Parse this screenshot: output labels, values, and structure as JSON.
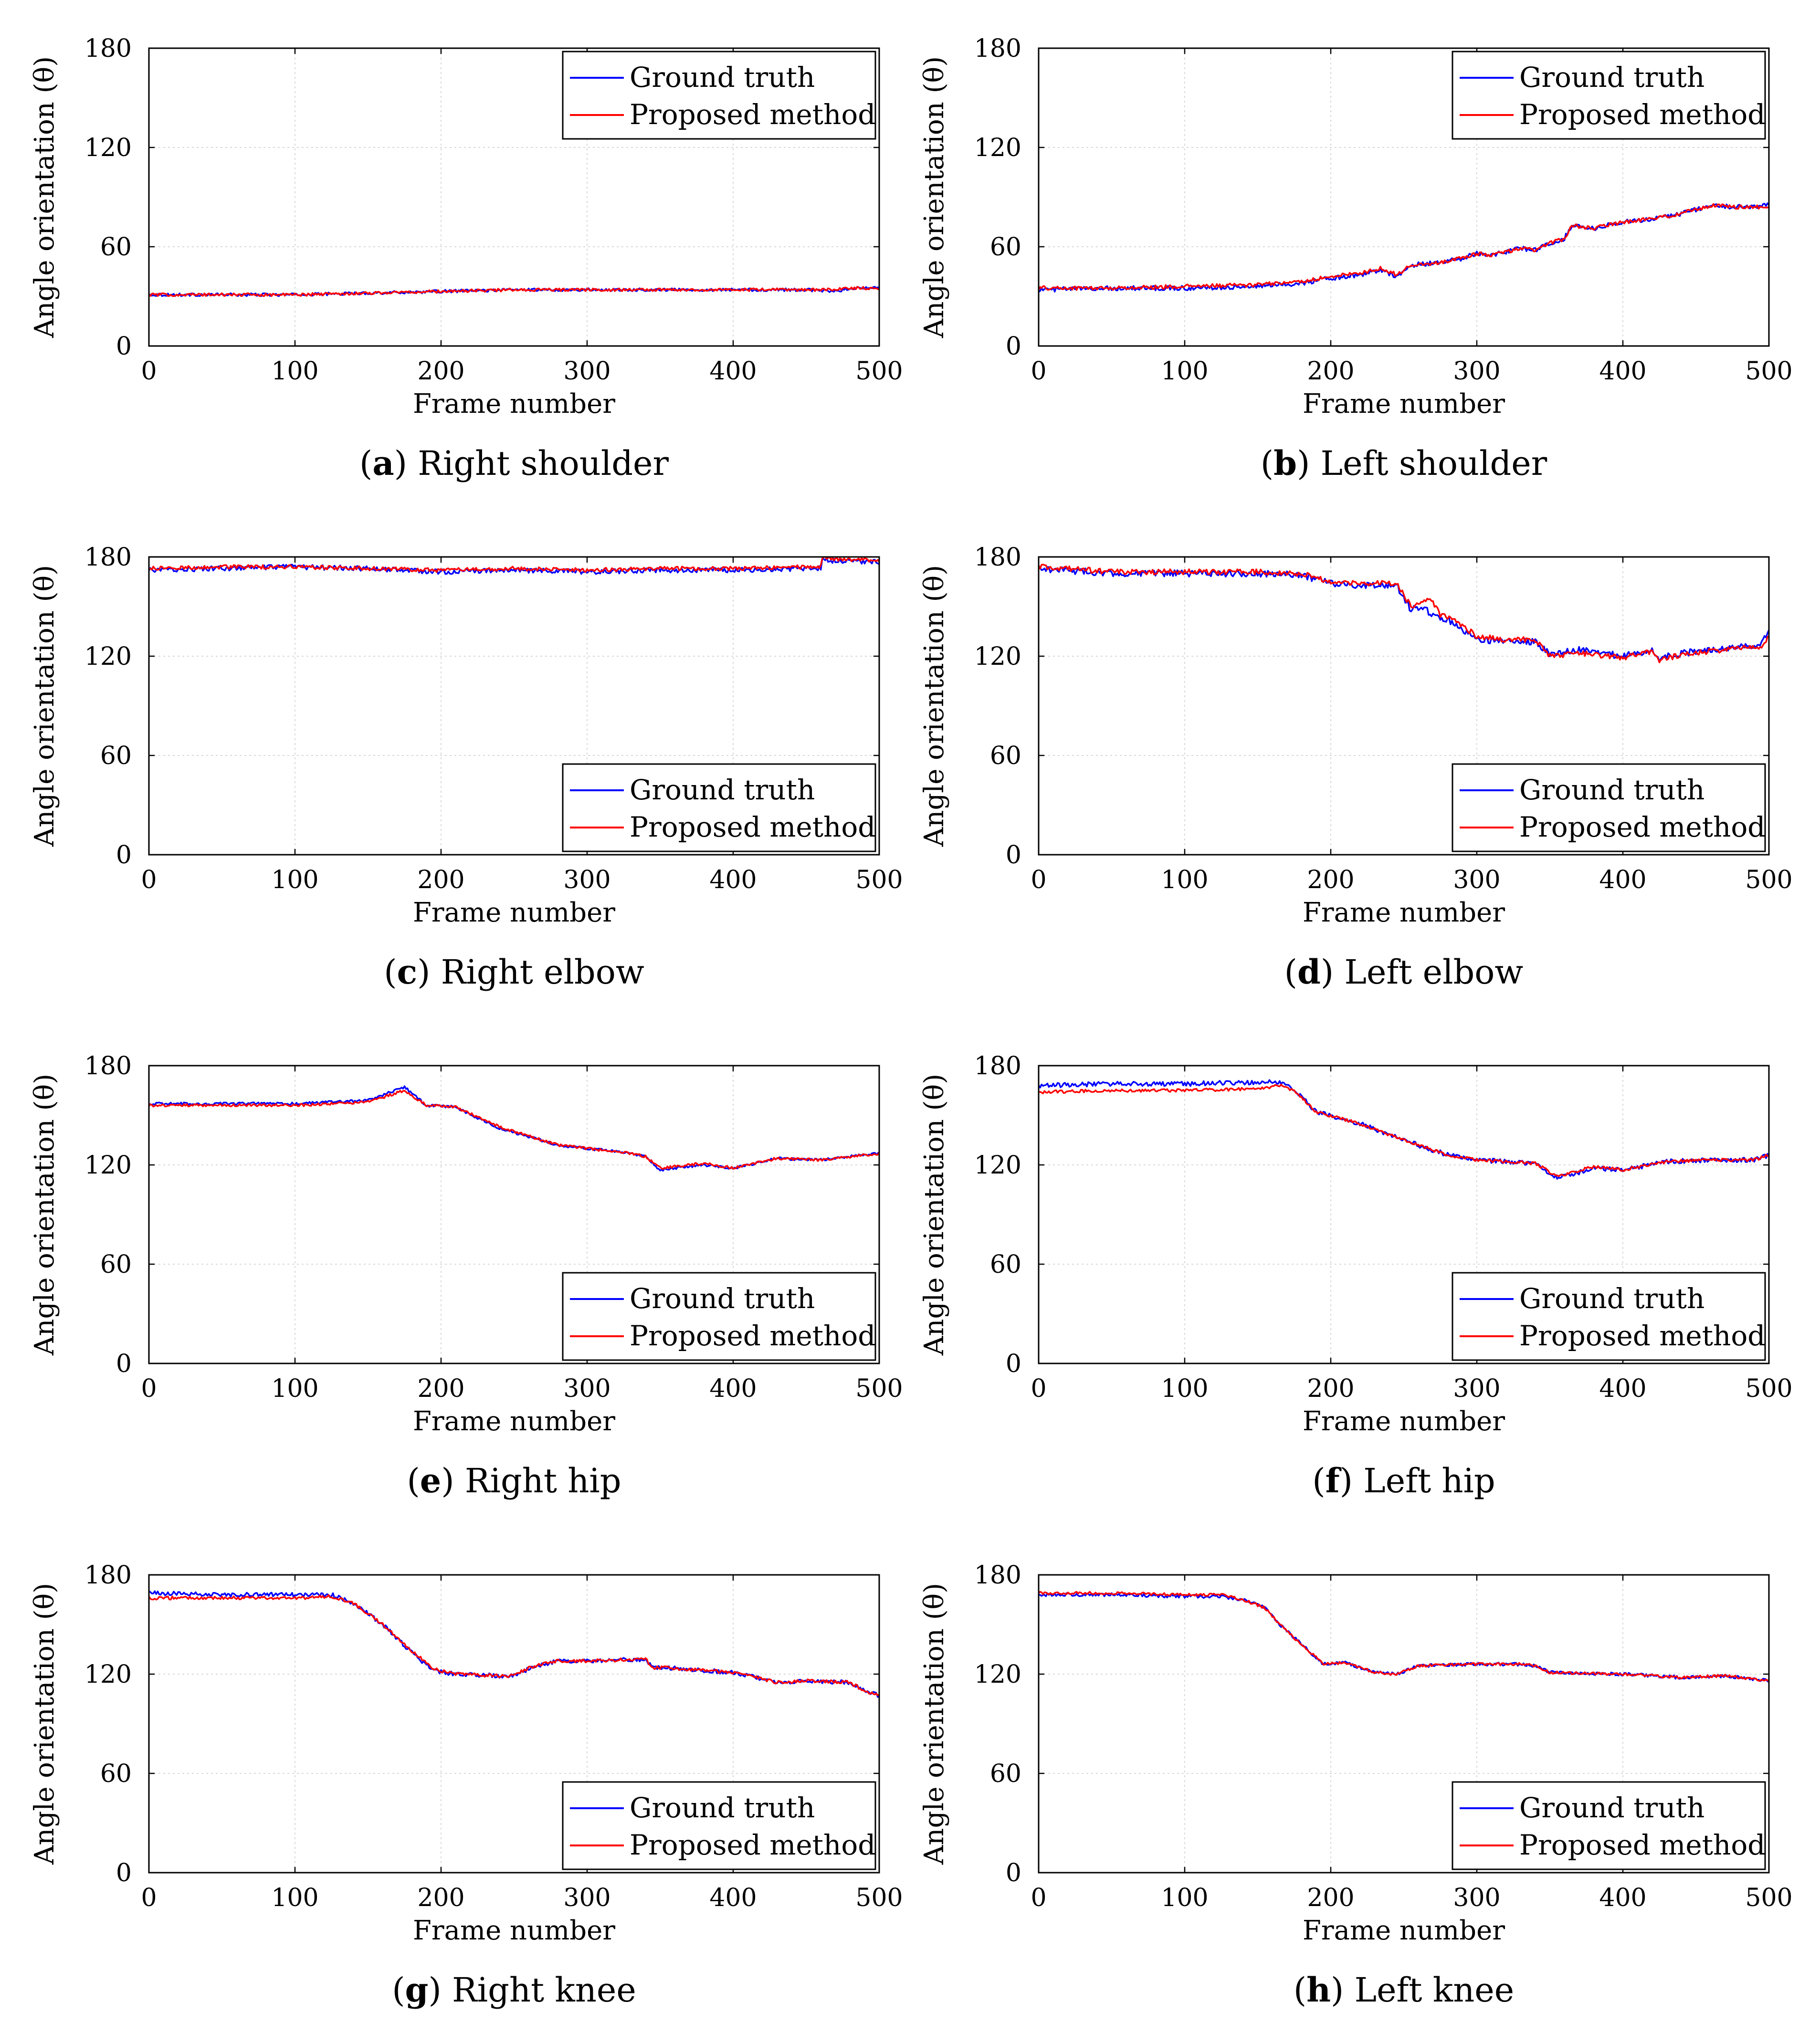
{
  "colors": {
    "ground_truth": "#0000ff",
    "proposed": "#ff0000",
    "axis": "#000000",
    "grid": "#d8d8d8"
  },
  "legend": {
    "ground_truth": "Ground truth",
    "proposed": "Proposed method"
  },
  "chart_data": [
    {
      "type": "line",
      "letter": "a",
      "title": "Right shoulder",
      "xlabel": "Frame number",
      "ylabel": "Angle orientation (θ)",
      "xlim": [
        0,
        500
      ],
      "ylim": [
        0,
        180
      ],
      "xticks": [
        "0",
        "100",
        "200",
        "300",
        "400",
        "500"
      ],
      "yticks": [
        "0",
        "60",
        "120",
        "180"
      ],
      "legend_position": "top-right",
      "grid": true,
      "series": [
        {
          "name": "Ground truth",
          "color": "#0000ff",
          "noise": 0.9,
          "x": [
            0,
            50,
            100,
            150,
            200,
            250,
            300,
            350,
            400,
            450,
            470,
            480,
            500
          ],
          "y": [
            31,
            31,
            31,
            32,
            33,
            34,
            34,
            34,
            34,
            34,
            33,
            35,
            35
          ]
        },
        {
          "name": "Proposed method",
          "color": "#ff0000",
          "noise": 0.9,
          "x": [
            0,
            50,
            100,
            150,
            200,
            250,
            300,
            350,
            400,
            450,
            470,
            480,
            500
          ],
          "y": [
            31,
            31,
            31,
            32,
            33,
            34,
            34,
            34,
            34,
            34,
            34,
            35,
            35
          ]
        }
      ]
    },
    {
      "type": "line",
      "letter": "b",
      "title": "Left shoulder",
      "xlabel": "Frame number",
      "ylabel": "Angle orientation (θ)",
      "xlim": [
        0,
        500
      ],
      "ylim": [
        0,
        180
      ],
      "xticks": [
        "0",
        "100",
        "200",
        "300",
        "400",
        "500"
      ],
      "yticks": [
        "0",
        "60",
        "120",
        "180"
      ],
      "legend_position": "top-right",
      "grid": true,
      "series": [
        {
          "name": "Ground truth",
          "color": "#0000ff",
          "noise": 1.4,
          "x": [
            0,
            50,
            100,
            150,
            180,
            200,
            220,
            235,
            245,
            255,
            270,
            290,
            300,
            310,
            330,
            340,
            350,
            360,
            365,
            380,
            400,
            420,
            440,
            460,
            480,
            500
          ],
          "y": [
            34,
            35,
            35,
            36,
            38,
            41,
            43,
            46,
            42,
            49,
            50,
            53,
            56,
            55,
            59,
            58,
            62,
            65,
            73,
            71,
            75,
            77,
            80,
            85,
            84,
            85
          ]
        },
        {
          "name": "Proposed method",
          "color": "#ff0000",
          "noise": 1.2,
          "x": [
            0,
            50,
            100,
            150,
            180,
            200,
            220,
            235,
            245,
            255,
            270,
            290,
            300,
            310,
            330,
            340,
            350,
            360,
            365,
            380,
            400,
            420,
            440,
            460,
            480,
            500
          ],
          "y": [
            35,
            35,
            36,
            37,
            39,
            42,
            44,
            47,
            43,
            49,
            50,
            53,
            56,
            55,
            59,
            58,
            62,
            65,
            73,
            71,
            75,
            77,
            80,
            85,
            84,
            84
          ]
        }
      ]
    },
    {
      "type": "line",
      "letter": "c",
      "title": "Right elbow",
      "xlabel": "Frame number",
      "ylabel": "Angle orientation (θ)",
      "xlim": [
        0,
        500
      ],
      "ylim": [
        0,
        180
      ],
      "xticks": [
        "0",
        "100",
        "200",
        "300",
        "400",
        "500"
      ],
      "yticks": [
        "0",
        "60",
        "120",
        "180"
      ],
      "legend_position": "bottom-right",
      "grid": true,
      "series": [
        {
          "name": "Ground truth",
          "color": "#0000ff",
          "noise": 1.5,
          "x": [
            0,
            50,
            100,
            150,
            200,
            250,
            300,
            350,
            400,
            450,
            460,
            461,
            500
          ],
          "y": [
            172,
            173,
            174,
            173,
            171,
            172,
            171,
            172,
            172,
            173,
            173,
            178,
            177
          ]
        },
        {
          "name": "Proposed method",
          "color": "#ff0000",
          "noise": 1.2,
          "x": [
            0,
            50,
            100,
            150,
            200,
            250,
            300,
            350,
            400,
            450,
            460,
            461,
            500
          ],
          "y": [
            173,
            174,
            174,
            173,
            172,
            173,
            172,
            173,
            173,
            174,
            174,
            179,
            178
          ]
        }
      ]
    },
    {
      "type": "line",
      "letter": "d",
      "title": "Left elbow",
      "xlabel": "Frame number",
      "ylabel": "Angle orientation (θ)",
      "xlim": [
        0,
        500
      ],
      "ylim": [
        0,
        180
      ],
      "xticks": [
        "0",
        "100",
        "200",
        "300",
        "400",
        "500"
      ],
      "yticks": [
        "0",
        "60",
        "120",
        "180"
      ],
      "legend_position": "bottom-right",
      "grid": true,
      "series": [
        {
          "name": "Ground truth",
          "color": "#0000ff",
          "noise": 2.0,
          "x": [
            0,
            50,
            100,
            150,
            180,
            200,
            220,
            240,
            245,
            255,
            262,
            268,
            275,
            285,
            300,
            320,
            340,
            350,
            370,
            400,
            420,
            425,
            430,
            450,
            480,
            495,
            500
          ],
          "y": [
            173,
            170,
            170,
            170,
            169,
            164,
            163,
            163,
            163,
            148,
            150,
            146,
            143,
            140,
            130,
            129,
            129,
            121,
            124,
            120,
            124,
            118,
            120,
            123,
            126,
            127,
            136
          ]
        },
        {
          "name": "Proposed method",
          "color": "#ff0000",
          "noise": 1.6,
          "x": [
            0,
            50,
            100,
            150,
            180,
            200,
            220,
            240,
            245,
            255,
            262,
            268,
            275,
            285,
            300,
            320,
            340,
            350,
            370,
            400,
            420,
            425,
            430,
            450,
            480,
            495,
            500
          ],
          "y": [
            174,
            171,
            171,
            171,
            170,
            165,
            164,
            164,
            164,
            150,
            152,
            155,
            145,
            142,
            132,
            130,
            130,
            120,
            122,
            119,
            123,
            117,
            119,
            122,
            125,
            126,
            132
          ]
        }
      ]
    },
    {
      "type": "line",
      "letter": "e",
      "title": "Right hip",
      "xlabel": "Frame number",
      "ylabel": "Angle orientation (θ)",
      "xlim": [
        0,
        500
      ],
      "ylim": [
        0,
        180
      ],
      "xticks": [
        "0",
        "100",
        "200",
        "300",
        "400",
        "500"
      ],
      "yticks": [
        "0",
        "60",
        "120",
        "180"
      ],
      "legend_position": "bottom-right",
      "grid": true,
      "series": [
        {
          "name": "Ground truth",
          "color": "#0000ff",
          "noise": 0.8,
          "x": [
            0,
            50,
            100,
            150,
            175,
            190,
            210,
            240,
            280,
            300,
            330,
            340,
            350,
            380,
            400,
            430,
            460,
            500
          ],
          "y": [
            157,
            157,
            157,
            159,
            167,
            156,
            155,
            142,
            132,
            130,
            127,
            125,
            117,
            120,
            118,
            124,
            123,
            127
          ]
        },
        {
          "name": "Proposed method",
          "color": "#ff0000",
          "noise": 0.8,
          "x": [
            0,
            50,
            100,
            150,
            175,
            190,
            210,
            240,
            280,
            300,
            330,
            340,
            350,
            380,
            400,
            430,
            460,
            500
          ],
          "y": [
            156,
            156,
            156,
            158,
            165,
            156,
            155,
            143,
            132,
            130,
            127,
            125,
            118,
            121,
            118,
            124,
            123,
            127
          ]
        }
      ]
    },
    {
      "type": "line",
      "letter": "f",
      "title": "Left hip",
      "xlabel": "Frame number",
      "ylabel": "Angle orientation (θ)",
      "xlim": [
        0,
        500
      ],
      "ylim": [
        0,
        180
      ],
      "xticks": [
        "0",
        "100",
        "200",
        "300",
        "400",
        "500"
      ],
      "yticks": [
        "0",
        "60",
        "120",
        "180"
      ],
      "legend_position": "bottom-right",
      "grid": true,
      "series": [
        {
          "name": "Ground truth",
          "color": "#0000ff",
          "noise": 1.4,
          "x": [
            0,
            50,
            100,
            150,
            165,
            175,
            190,
            220,
            250,
            280,
            300,
            340,
            355,
            380,
            400,
            430,
            460,
            490,
            500
          ],
          "y": [
            168,
            169,
            169,
            170,
            170,
            166,
            152,
            145,
            135,
            126,
            123,
            121,
            112,
            118,
            117,
            122,
            123,
            123,
            126
          ]
        },
        {
          "name": "Proposed method",
          "color": "#ff0000",
          "noise": 0.9,
          "x": [
            0,
            50,
            100,
            150,
            165,
            175,
            190,
            220,
            250,
            280,
            300,
            340,
            355,
            380,
            400,
            430,
            460,
            490,
            500
          ],
          "y": [
            164,
            165,
            165,
            166,
            168,
            165,
            152,
            145,
            135,
            126,
            123,
            121,
            113,
            119,
            117,
            122,
            123,
            123,
            126
          ]
        }
      ]
    },
    {
      "type": "line",
      "letter": "g",
      "title": "Right knee",
      "xlabel": "Frame number",
      "ylabel": "Angle orientation (θ)",
      "xlim": [
        0,
        500
      ],
      "ylim": [
        0,
        180
      ],
      "xticks": [
        "0",
        "100",
        "200",
        "300",
        "400",
        "500"
      ],
      "yticks": [
        "0",
        "60",
        "120",
        "180"
      ],
      "legend_position": "bottom-right",
      "grid": true,
      "series": [
        {
          "name": "Ground truth",
          "color": "#0000ff",
          "noise": 1.3,
          "x": [
            0,
            50,
            100,
            125,
            140,
            160,
            180,
            195,
            210,
            240,
            250,
            260,
            280,
            300,
            340,
            345,
            350,
            400,
            430,
            450,
            480,
            490,
            500
          ],
          "y": [
            169,
            168,
            168,
            168,
            163,
            150,
            133,
            122,
            120,
            119,
            119,
            123,
            128,
            128,
            129,
            124,
            124,
            121,
            115,
            116,
            115,
            110,
            107
          ]
        },
        {
          "name": "Proposed method",
          "color": "#ff0000",
          "noise": 1.0,
          "x": [
            0,
            50,
            100,
            125,
            140,
            160,
            180,
            195,
            210,
            240,
            250,
            260,
            280,
            300,
            340,
            345,
            350,
            400,
            430,
            450,
            480,
            490,
            500
          ],
          "y": [
            166,
            166,
            166,
            167,
            163,
            150,
            134,
            123,
            120,
            119,
            119,
            124,
            128,
            128,
            129,
            124,
            124,
            121,
            115,
            116,
            115,
            110,
            107
          ]
        }
      ]
    },
    {
      "type": "line",
      "letter": "h",
      "title": "Left knee",
      "xlabel": "Frame number",
      "ylabel": "Angle orientation (θ)",
      "xlim": [
        0,
        500
      ],
      "ylim": [
        0,
        180
      ],
      "xticks": [
        "0",
        "100",
        "200",
        "300",
        "400",
        "500"
      ],
      "yticks": [
        "0",
        "60",
        "120",
        "180"
      ],
      "legend_position": "bottom-right",
      "grid": true,
      "series": [
        {
          "name": "Ground truth",
          "color": "#0000ff",
          "noise": 1.0,
          "x": [
            0,
            50,
            100,
            125,
            140,
            155,
            165,
            180,
            195,
            210,
            230,
            245,
            260,
            300,
            330,
            340,
            350,
            400,
            440,
            470,
            500
          ],
          "y": [
            168,
            168,
            167,
            167,
            165,
            160,
            150,
            138,
            126,
            127,
            121,
            120,
            125,
            126,
            126,
            125,
            121,
            120,
            118,
            119,
            116
          ]
        },
        {
          "name": "Proposed method",
          "color": "#ff0000",
          "noise": 0.8,
          "x": [
            0,
            50,
            100,
            125,
            140,
            155,
            165,
            180,
            195,
            210,
            230,
            245,
            260,
            300,
            330,
            340,
            350,
            400,
            440,
            470,
            500
          ],
          "y": [
            169,
            169,
            168,
            168,
            165,
            160,
            150,
            138,
            126,
            127,
            121,
            120,
            125,
            126,
            126,
            125,
            121,
            120,
            118,
            119,
            116
          ]
        }
      ]
    }
  ]
}
